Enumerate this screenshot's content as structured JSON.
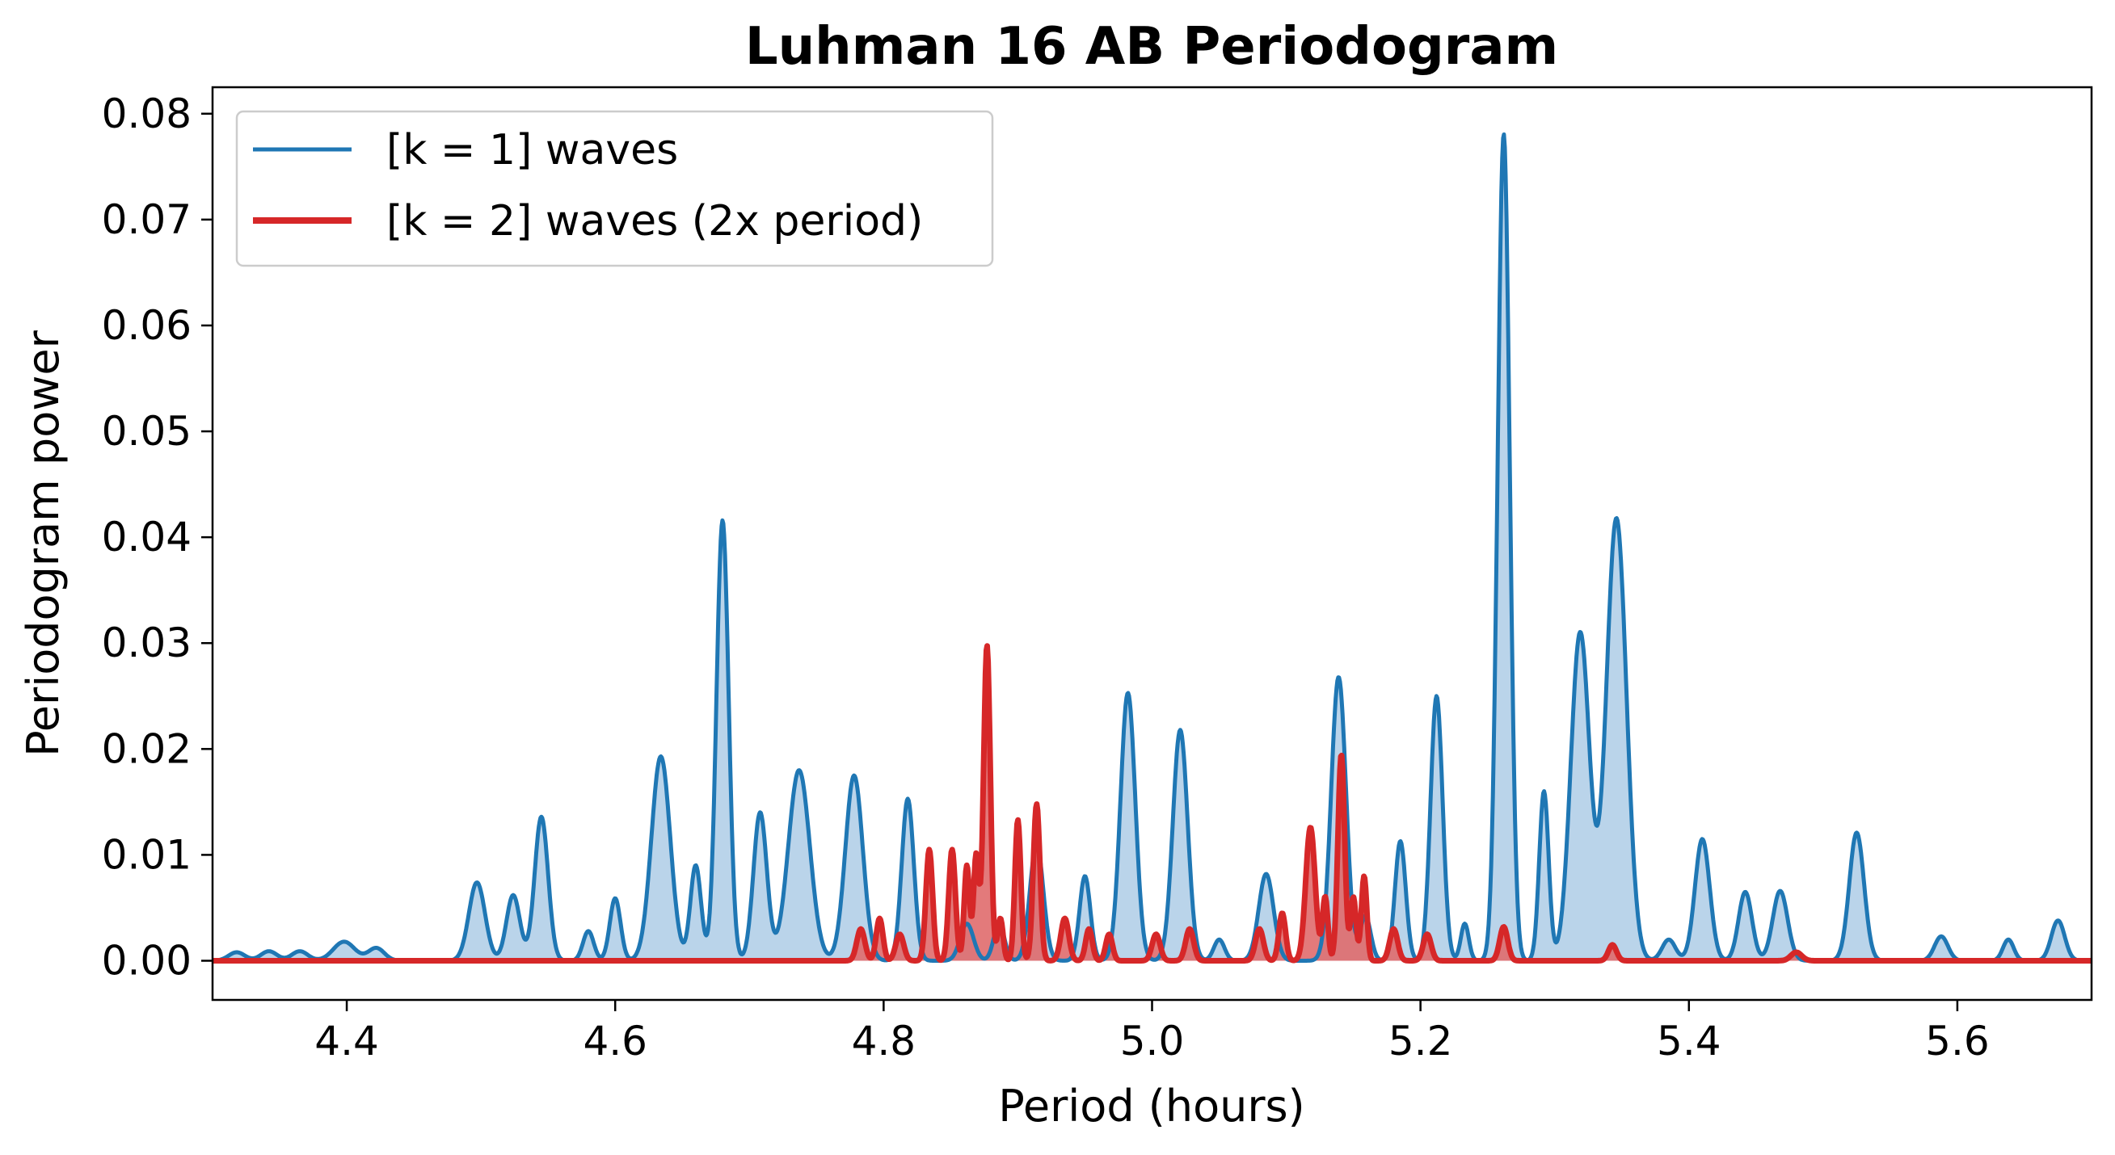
{
  "chart_data": {
    "type": "area",
    "title": "Luhman 16 AB Periodogram",
    "xlabel": "Period (hours)",
    "ylabel": "Periodogram power",
    "xlim": [
      4.3,
      5.7
    ],
    "ylim": [
      -0.0037,
      0.0825
    ],
    "xticks": [
      "4.4",
      "4.6",
      "4.8",
      "5.0",
      "5.2",
      "5.4",
      "5.6"
    ],
    "yticks": [
      "0.00",
      "0.01",
      "0.02",
      "0.03",
      "0.04",
      "0.05",
      "0.06",
      "0.07",
      "0.08"
    ],
    "grid": false,
    "legend_position": "upper-left",
    "series": [
      {
        "name": "[k = 1] waves",
        "color": "#1f77b4",
        "fill_color": "#aecde6",
        "peaks": [
          [
            4.318,
            0.0008,
            0.006
          ],
          [
            4.342,
            0.0009,
            0.006
          ],
          [
            4.365,
            0.0009,
            0.006
          ],
          [
            4.398,
            0.0018,
            0.008
          ],
          [
            4.422,
            0.0012,
            0.006
          ],
          [
            4.497,
            0.0074,
            0.006
          ],
          [
            4.524,
            0.0062,
            0.005
          ],
          [
            4.545,
            0.0136,
            0.005
          ],
          [
            4.58,
            0.0028,
            0.004
          ],
          [
            4.6,
            0.0059,
            0.004
          ],
          [
            4.634,
            0.0193,
            0.007
          ],
          [
            4.66,
            0.009,
            0.004
          ],
          [
            4.68,
            0.0416,
            0.0045
          ],
          [
            4.708,
            0.014,
            0.005
          ],
          [
            4.737,
            0.018,
            0.008
          ],
          [
            4.778,
            0.0175,
            0.0065
          ],
          [
            4.818,
            0.0153,
            0.0045
          ],
          [
            4.862,
            0.0035,
            0.005
          ],
          [
            4.886,
            0.0035,
            0.004
          ],
          [
            4.914,
            0.011,
            0.005
          ],
          [
            4.95,
            0.008,
            0.004
          ],
          [
            4.982,
            0.0253,
            0.0055
          ],
          [
            5.021,
            0.0218,
            0.0055
          ],
          [
            5.05,
            0.002,
            0.004
          ],
          [
            5.085,
            0.0082,
            0.0055
          ],
          [
            5.139,
            0.0268,
            0.0055
          ],
          [
            5.159,
            0.0042,
            0.004
          ],
          [
            5.185,
            0.0113,
            0.004
          ],
          [
            5.212,
            0.025,
            0.0045
          ],
          [
            5.233,
            0.0035,
            0.003
          ],
          [
            5.262,
            0.0781,
            0.0045
          ],
          [
            5.292,
            0.016,
            0.0035
          ],
          [
            5.319,
            0.031,
            0.007
          ],
          [
            5.346,
            0.0418,
            0.0075
          ],
          [
            5.385,
            0.002,
            0.005
          ],
          [
            5.41,
            0.0115,
            0.0055
          ],
          [
            5.442,
            0.0065,
            0.005
          ],
          [
            5.468,
            0.0066,
            0.0055
          ],
          [
            5.525,
            0.0121,
            0.0055
          ],
          [
            5.588,
            0.0023,
            0.005
          ],
          [
            5.638,
            0.002,
            0.004
          ],
          [
            5.675,
            0.0038,
            0.005
          ]
        ]
      },
      {
        "name": "[k = 2] waves (2x period)",
        "color": "#d62728",
        "fill_color": "#e06c6d",
        "peaks": [
          [
            4.783,
            0.003,
            0.003
          ],
          [
            4.797,
            0.004,
            0.0025
          ],
          [
            4.812,
            0.0025,
            0.003
          ],
          [
            4.834,
            0.0105,
            0.0025
          ],
          [
            4.851,
            0.0105,
            0.0025
          ],
          [
            4.862,
            0.009,
            0.002
          ],
          [
            4.869,
            0.01,
            0.002
          ],
          [
            4.877,
            0.0298,
            0.0025
          ],
          [
            4.887,
            0.004,
            0.002
          ],
          [
            4.9,
            0.0133,
            0.0022
          ],
          [
            4.914,
            0.0148,
            0.0025
          ],
          [
            4.935,
            0.004,
            0.003
          ],
          [
            4.953,
            0.003,
            0.0025
          ],
          [
            4.968,
            0.0025,
            0.0025
          ],
          [
            5.003,
            0.0025,
            0.003
          ],
          [
            5.028,
            0.003,
            0.003
          ],
          [
            5.08,
            0.003,
            0.003
          ],
          [
            5.097,
            0.0045,
            0.0025
          ],
          [
            5.118,
            0.0126,
            0.0035
          ],
          [
            5.129,
            0.006,
            0.002
          ],
          [
            5.141,
            0.0195,
            0.0025
          ],
          [
            5.15,
            0.006,
            0.002
          ],
          [
            5.158,
            0.008,
            0.002
          ],
          [
            5.18,
            0.003,
            0.003
          ],
          [
            5.205,
            0.0025,
            0.003
          ],
          [
            5.262,
            0.0032,
            0.003
          ],
          [
            5.343,
            0.0015,
            0.003
          ],
          [
            5.48,
            0.0008,
            0.004
          ]
        ]
      }
    ]
  }
}
